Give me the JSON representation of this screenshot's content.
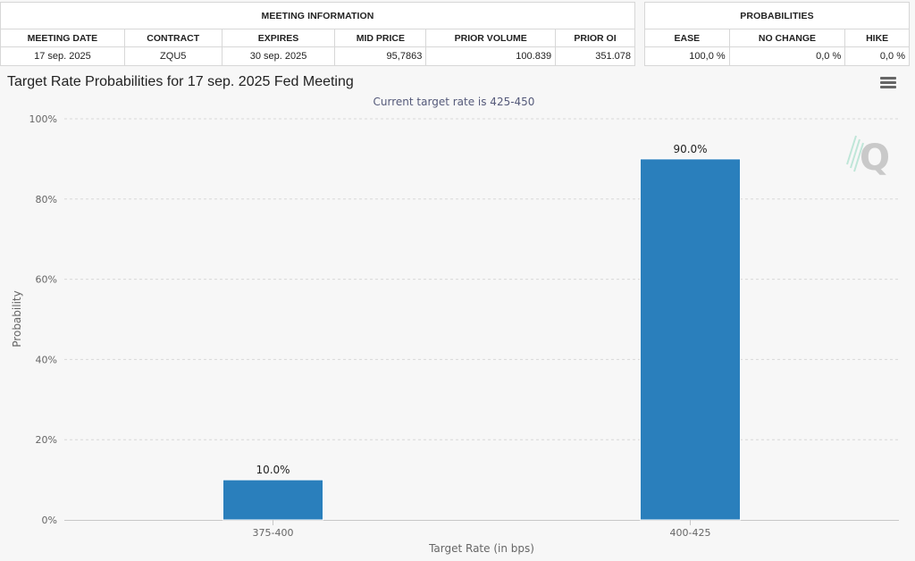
{
  "meeting_info": {
    "title": "MEETING INFORMATION",
    "headers": [
      "MEETING DATE",
      "CONTRACT",
      "EXPIRES",
      "MID PRICE",
      "PRIOR VOLUME",
      "PRIOR OI"
    ],
    "row": [
      "17 sep. 2025",
      "ZQU5",
      "30 sep. 2025",
      "95,7863",
      "100.839",
      "351.078"
    ]
  },
  "probabilities": {
    "title": "PROBABILITIES",
    "headers": [
      "EASE",
      "NO CHANGE",
      "HIKE"
    ],
    "row": [
      "100,0 %",
      "0,0 %",
      "0,0 %"
    ]
  },
  "chart_data": {
    "type": "bar",
    "title": "Target Rate Probabilities for 17 sep. 2025 Fed Meeting",
    "subtitle": "Current target rate is 425-450",
    "xlabel": "Target Rate (in bps)",
    "ylabel": "Probability",
    "categories": [
      "375-400",
      "400-425"
    ],
    "values": [
      10.0,
      90.0
    ],
    "data_labels": [
      "10.0%",
      "90.0%"
    ],
    "ylim": [
      0,
      100
    ],
    "yticks": [
      0,
      20,
      40,
      60,
      80,
      100
    ],
    "ytick_labels": [
      "0%",
      "20%",
      "40%",
      "60%",
      "80%",
      "100%"
    ],
    "grid": true,
    "bar_color": "#2a7fbc",
    "watermark_icon": "quikstrike-q-logo-icon",
    "menu_icon": "hamburger-menu-icon"
  }
}
